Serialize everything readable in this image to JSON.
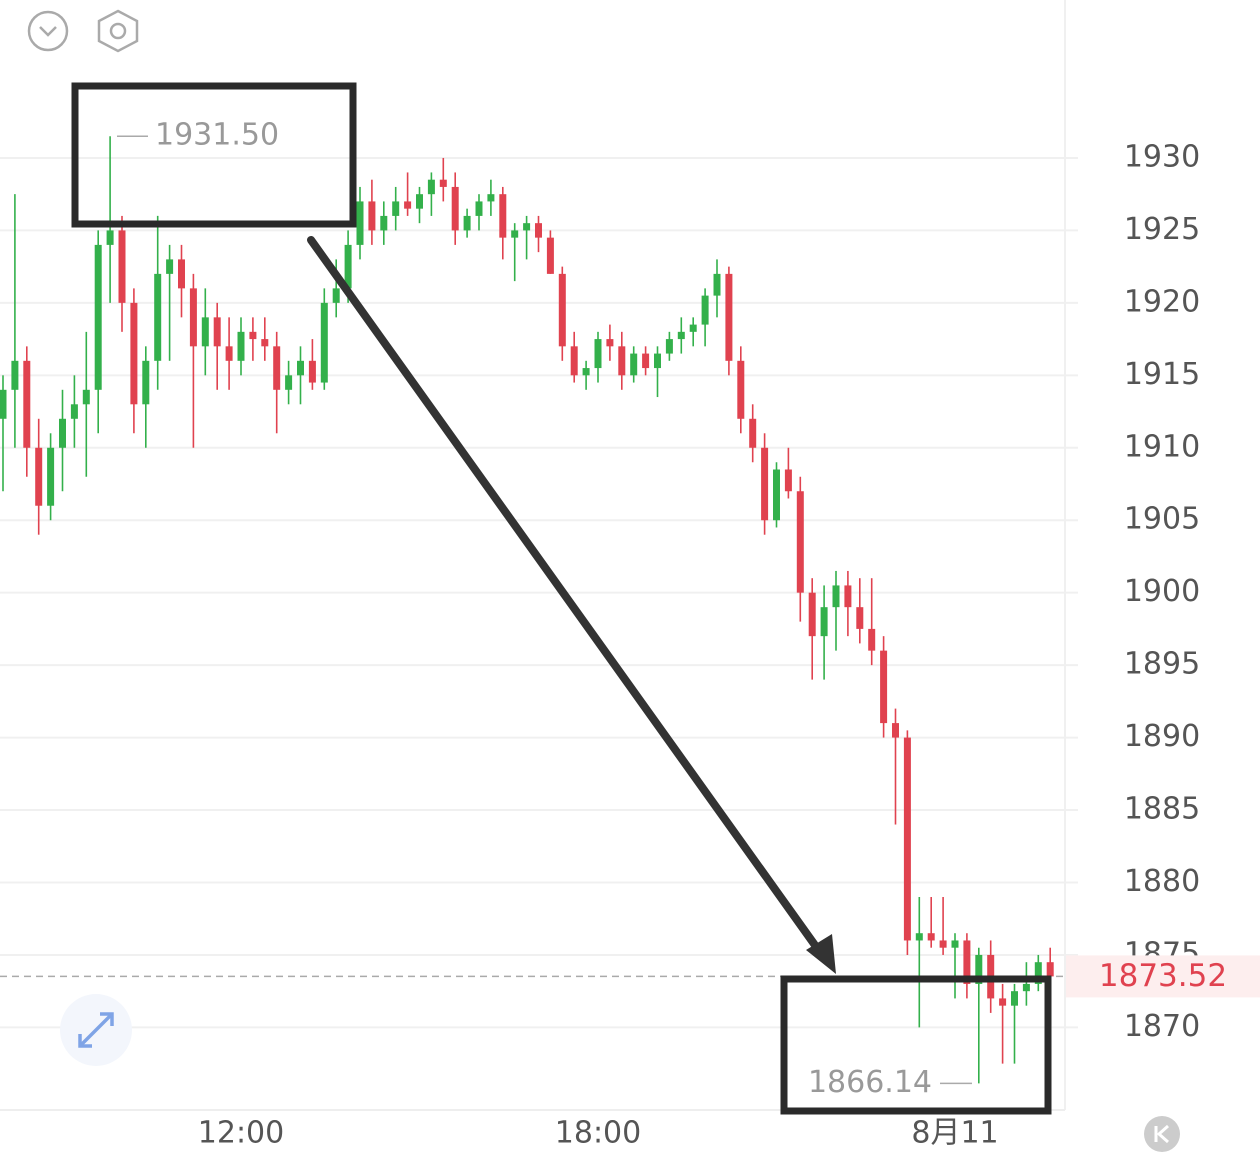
{
  "chart_data": {
    "type": "candlestick",
    "up_color": "#33b04b",
    "down_color": "#e0424f",
    "categories": [
      null,
      null,
      null,
      null,
      null,
      null,
      null,
      null,
      null,
      null,
      null,
      null,
      null,
      null,
      null,
      null,
      null,
      null,
      null,
      null,
      "12:00",
      null,
      null,
      null,
      null,
      null,
      null,
      null,
      null,
      null,
      null,
      null,
      null,
      null,
      null,
      null,
      null,
      null,
      null,
      null,
      null,
      null,
      null,
      null,
      null,
      null,
      null,
      null,
      null,
      null,
      "18:00",
      null,
      null,
      null,
      null,
      null,
      null,
      null,
      null,
      null,
      null,
      null,
      null,
      null,
      null,
      null,
      null,
      null,
      null,
      null,
      null,
      null,
      null,
      null,
      null,
      null,
      null,
      null,
      null,
      null,
      "8月11",
      null,
      null,
      null,
      null,
      null,
      null,
      null,
      null
    ],
    "ohlc": [
      [
        1912,
        1915,
        1907,
        1914
      ],
      [
        1914,
        1927.5,
        1910,
        1916
      ],
      [
        1916,
        1917,
        1908,
        1910
      ],
      [
        1910,
        1912,
        1904,
        1906
      ],
      [
        1906,
        1911,
        1905,
        1910
      ],
      [
        1910,
        1914,
        1907,
        1912
      ],
      [
        1912,
        1915,
        1910,
        1913
      ],
      [
        1913,
        1918,
        1908,
        1914
      ],
      [
        1914,
        1925,
        1911,
        1924
      ],
      [
        1924,
        1931.5,
        1920,
        1925
      ],
      [
        1925,
        1926,
        1918,
        1920
      ],
      [
        1920,
        1921,
        1911,
        1913
      ],
      [
        1913,
        1917,
        1910,
        1916
      ],
      [
        1916,
        1926,
        1914,
        1922
      ],
      [
        1922,
        1924,
        1916,
        1923
      ],
      [
        1923,
        1924,
        1919,
        1921
      ],
      [
        1921,
        1922,
        1910,
        1917
      ],
      [
        1917,
        1921,
        1915,
        1919
      ],
      [
        1919,
        1920,
        1914,
        1917
      ],
      [
        1917,
        1919,
        1914,
        1916
      ],
      [
        1916,
        1919,
        1915,
        1918
      ],
      [
        1918,
        1919,
        1916,
        1917.5
      ],
      [
        1917.5,
        1919,
        1916,
        1917
      ],
      [
        1917,
        1918,
        1911,
        1914
      ],
      [
        1914,
        1916,
        1913,
        1915
      ],
      [
        1915,
        1917,
        1913,
        1916
      ],
      [
        1916,
        1917.5,
        1914,
        1914.5
      ],
      [
        1914.5,
        1921,
        1914,
        1920
      ],
      [
        1920,
        1923,
        1919,
        1921
      ],
      [
        1921,
        1925,
        1920,
        1924
      ],
      [
        1924,
        1928,
        1923,
        1927
      ],
      [
        1927,
        1928.5,
        1924,
        1925
      ],
      [
        1925,
        1927,
        1924,
        1926
      ],
      [
        1926,
        1928,
        1925,
        1927
      ],
      [
        1927,
        1929,
        1926,
        1926.5
      ],
      [
        1926.5,
        1928,
        1925.5,
        1927.5
      ],
      [
        1927.5,
        1929,
        1926,
        1928.5
      ],
      [
        1928.5,
        1930,
        1927,
        1928
      ],
      [
        1928,
        1929,
        1924,
        1925
      ],
      [
        1925,
        1926.5,
        1924.5,
        1926
      ],
      [
        1926,
        1927.5,
        1925,
        1927
      ],
      [
        1927,
        1928.5,
        1926,
        1927.5
      ],
      [
        1927.5,
        1928,
        1923,
        1924.5
      ],
      [
        1924.5,
        1925.5,
        1921.5,
        1925
      ],
      [
        1925,
        1926,
        1923,
        1925.5
      ],
      [
        1925.5,
        1926,
        1923.5,
        1924.5
      ],
      [
        1924.5,
        1925,
        1922,
        1922
      ],
      [
        1922,
        1922.5,
        1916,
        1917
      ],
      [
        1917,
        1918,
        1914.5,
        1915
      ],
      [
        1915,
        1916,
        1914,
        1915.5
      ],
      [
        1915.5,
        1918,
        1914.5,
        1917.5
      ],
      [
        1917.5,
        1918.5,
        1916,
        1917
      ],
      [
        1917,
        1918,
        1914,
        1915
      ],
      [
        1915,
        1917,
        1914.5,
        1916.5
      ],
      [
        1916.5,
        1917,
        1915,
        1915.5
      ],
      [
        1915.5,
        1917,
        1913.5,
        1916.5
      ],
      [
        1916.5,
        1918,
        1916,
        1917.5
      ],
      [
        1917.5,
        1919,
        1916.5,
        1918
      ],
      [
        1918,
        1919,
        1917,
        1918.5
      ],
      [
        1918.5,
        1921,
        1917,
        1920.5
      ],
      [
        1920.5,
        1923,
        1919,
        1922
      ],
      [
        1922,
        1922.5,
        1915,
        1916
      ],
      [
        1916,
        1917,
        1911,
        1912
      ],
      [
        1912,
        1913,
        1909,
        1910
      ],
      [
        1910,
        1911,
        1904,
        1905
      ],
      [
        1905,
        1909,
        1904.5,
        1908.5
      ],
      [
        1908.5,
        1910,
        1906.5,
        1907
      ],
      [
        1907,
        1908,
        1898,
        1900
      ],
      [
        1900,
        1901,
        1894,
        1897
      ],
      [
        1897,
        1900.5,
        1894,
        1899
      ],
      [
        1899,
        1901.5,
        1896,
        1900.5
      ],
      [
        1900.5,
        1901.5,
        1897,
        1899
      ],
      [
        1899,
        1901,
        1896.5,
        1897.5
      ],
      [
        1897.5,
        1901,
        1895,
        1896
      ],
      [
        1896,
        1897,
        1890,
        1891
      ],
      [
        1891,
        1892,
        1884,
        1890
      ],
      [
        1890,
        1890.5,
        1875,
        1876
      ],
      [
        1876,
        1879,
        1870,
        1876.5
      ],
      [
        1876.5,
        1879,
        1875.5,
        1876
      ],
      [
        1876,
        1879,
        1875,
        1875.5
      ],
      [
        1875.5,
        1876.5,
        1872,
        1876
      ],
      [
        1876,
        1876.5,
        1872,
        1873
      ],
      [
        1873,
        1875.5,
        1866.14,
        1875
      ],
      [
        1875,
        1876,
        1871,
        1872
      ],
      [
        1872,
        1873,
        1867.5,
        1871.5
      ],
      [
        1871.5,
        1873,
        1867.5,
        1872.5
      ],
      [
        1872.5,
        1874.5,
        1871.5,
        1873
      ],
      [
        1873,
        1875,
        1872.5,
        1874.5
      ],
      [
        1874.5,
        1875.5,
        1872.5,
        1873.52
      ]
    ],
    "ylim": [
      1864.3,
      1940.9
    ],
    "yticks": [
      1870,
      1875,
      1880,
      1885,
      1890,
      1895,
      1900,
      1905,
      1910,
      1915,
      1920,
      1925,
      1930
    ],
    "grid": true,
    "max_label": {
      "value": 1931.5,
      "label": "1931.50"
    },
    "min_label": {
      "value": 1866.14,
      "label": "1866.14"
    },
    "last_label": {
      "value": 1873.52,
      "label": "1873.52"
    }
  }
}
